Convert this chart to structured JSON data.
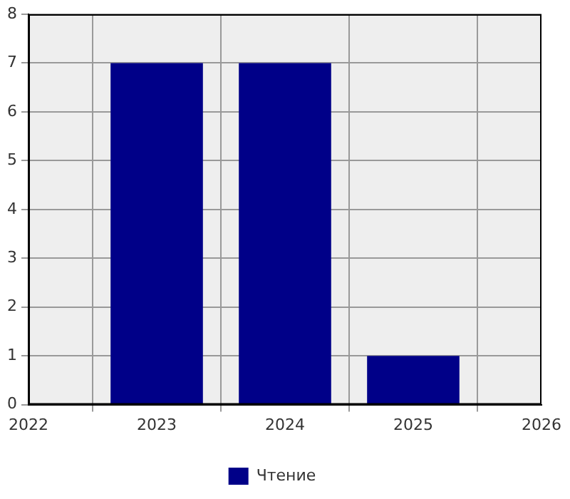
{
  "chart_data": {
    "type": "bar",
    "x": [
      2023,
      2024,
      2025
    ],
    "series": [
      {
        "name": "Чтение",
        "color": "#000088",
        "values": [
          7,
          7,
          1
        ]
      }
    ],
    "xlim": [
      2022,
      2026
    ],
    "xticks": [
      2022,
      2023,
      2024,
      2025,
      2026
    ],
    "ylim": [
      0,
      8
    ],
    "yticks": [
      0,
      1,
      2,
      3,
      4,
      5,
      6,
      7,
      8
    ],
    "grid": true,
    "legend": "bottom"
  }
}
